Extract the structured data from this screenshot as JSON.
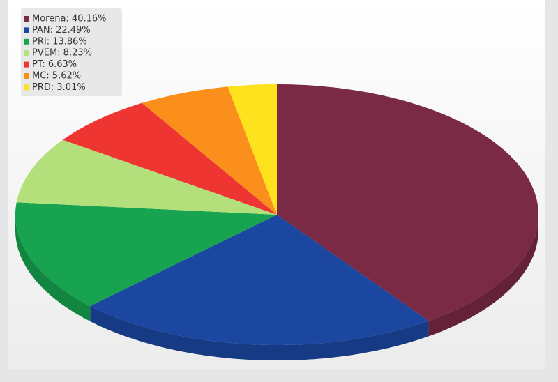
{
  "chart_data": {
    "type": "pie",
    "categories": [
      "Morena: 40.16%",
      "PAN: 22.49%",
      "PRI: 13.86%",
      "PVEM: 8.23%",
      "PT: 6.63%",
      "MC: 5.62%",
      "PRD: 3.01%"
    ],
    "values": [
      40.16,
      22.49,
      13.86,
      8.23,
      6.63,
      5.62,
      3.01
    ],
    "colors": [
      "#7b2a45",
      "#1b47a0",
      "#17a34f",
      "#b3e07a",
      "#ee3531",
      "#fb8f1b",
      "#fde21d"
    ],
    "legend": "top-left"
  }
}
